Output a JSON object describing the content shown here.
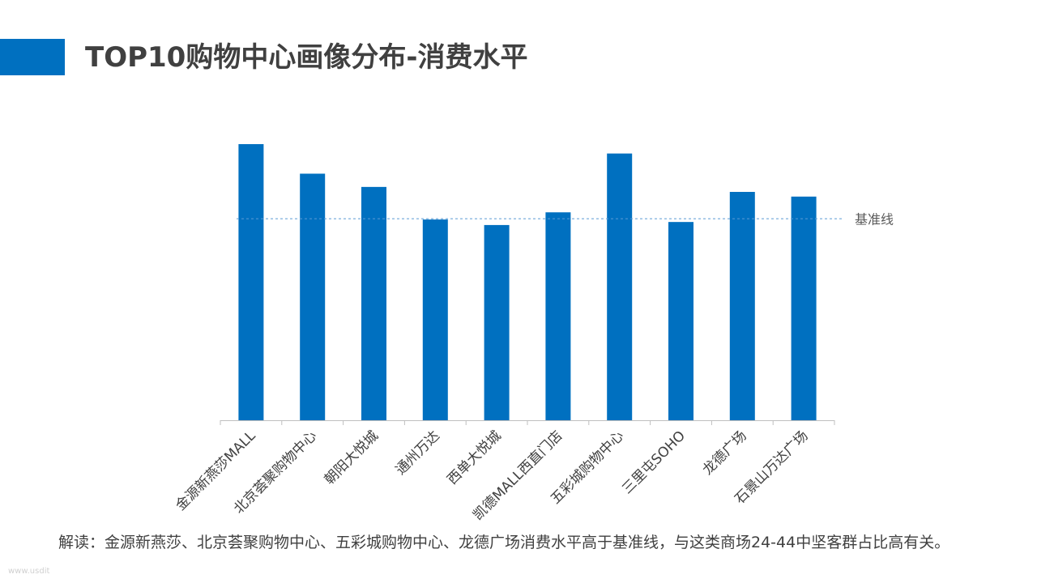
{
  "header": {
    "title": "TOP10购物中心画像分布-消费水平",
    "accent_color": "#0070c0"
  },
  "chart_data": {
    "type": "bar",
    "title": "TOP10购物中心画像分布-消费水平",
    "categories": [
      "金源新燕莎MALL",
      "北京荟聚购物中心",
      "朝阳大悦城",
      "通州万达",
      "西单大悦城",
      "凯德MALL西直门店",
      "五彩城购物中心",
      "三里屯SOHO",
      "龙德广场",
      "石景山万达广场"
    ],
    "values": [
      100,
      89.3,
      84.5,
      72.7,
      70.7,
      75.3,
      96.6,
      71.8,
      82.7,
      81.0
    ],
    "baseline": {
      "label": "基准线",
      "value": 73.0
    },
    "ylim": [
      0,
      100
    ],
    "grid": false,
    "bar_color": "#0070c0",
    "baseline_color": "#5b9bd5"
  },
  "footnote": {
    "text": "解读：金源新燕莎、北京荟聚购物中心、五彩城购物中心、龙德广场消费水平高于基准线，与这类商场24-44中坚客群占比高有关。"
  },
  "watermark": {
    "text": "www.usdit"
  }
}
